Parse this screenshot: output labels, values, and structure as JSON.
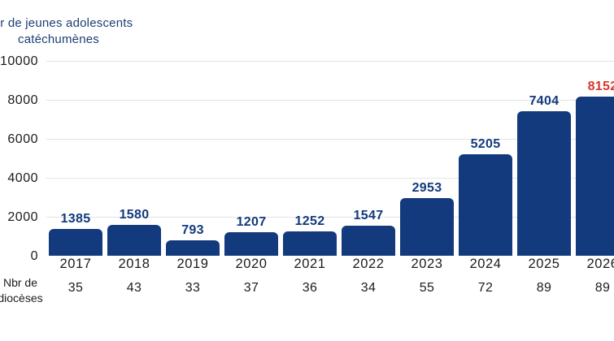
{
  "header": {
    "title_line1": "Nbr de jeunes adolescents",
    "title_line2": "catéchumènes"
  },
  "footer_label": {
    "line1": "Nbr de",
    "line2": "diocèses"
  },
  "colors": {
    "bar_navy": "#123a7c",
    "value_label_navy": "#123a7c",
    "highlight_red": "#d7372f",
    "title_navy": "#1b3e74",
    "axis_text": "#1c1c1c",
    "gridline": "#e4e4e4"
  },
  "chart_data": {
    "type": "bar",
    "title": "Nbr de jeunes adolescents catéchumènes",
    "xlabel": "",
    "ylabel": "Nbr de jeunes adolescents catéchumènes",
    "categories": [
      "2017",
      "2018",
      "2019",
      "2020",
      "2021",
      "2022",
      "2023",
      "2024",
      "2025",
      "2026"
    ],
    "series": [
      {
        "name": "Nbr de jeunes adolescents catéchumènes",
        "values": [
          1385,
          1580,
          793,
          1207,
          1252,
          1547,
          2953,
          5205,
          7404,
          8152
        ]
      },
      {
        "name": "Nbr de diocèses",
        "values": [
          35,
          43,
          33,
          37,
          36,
          34,
          55,
          72,
          89,
          89
        ]
      }
    ],
    "ylim": [
      0,
      10000
    ],
    "yticks": [
      0,
      2000,
      4000,
      6000,
      8000,
      10000
    ],
    "grid": true,
    "legend": "none",
    "highlight_last_value": true
  }
}
